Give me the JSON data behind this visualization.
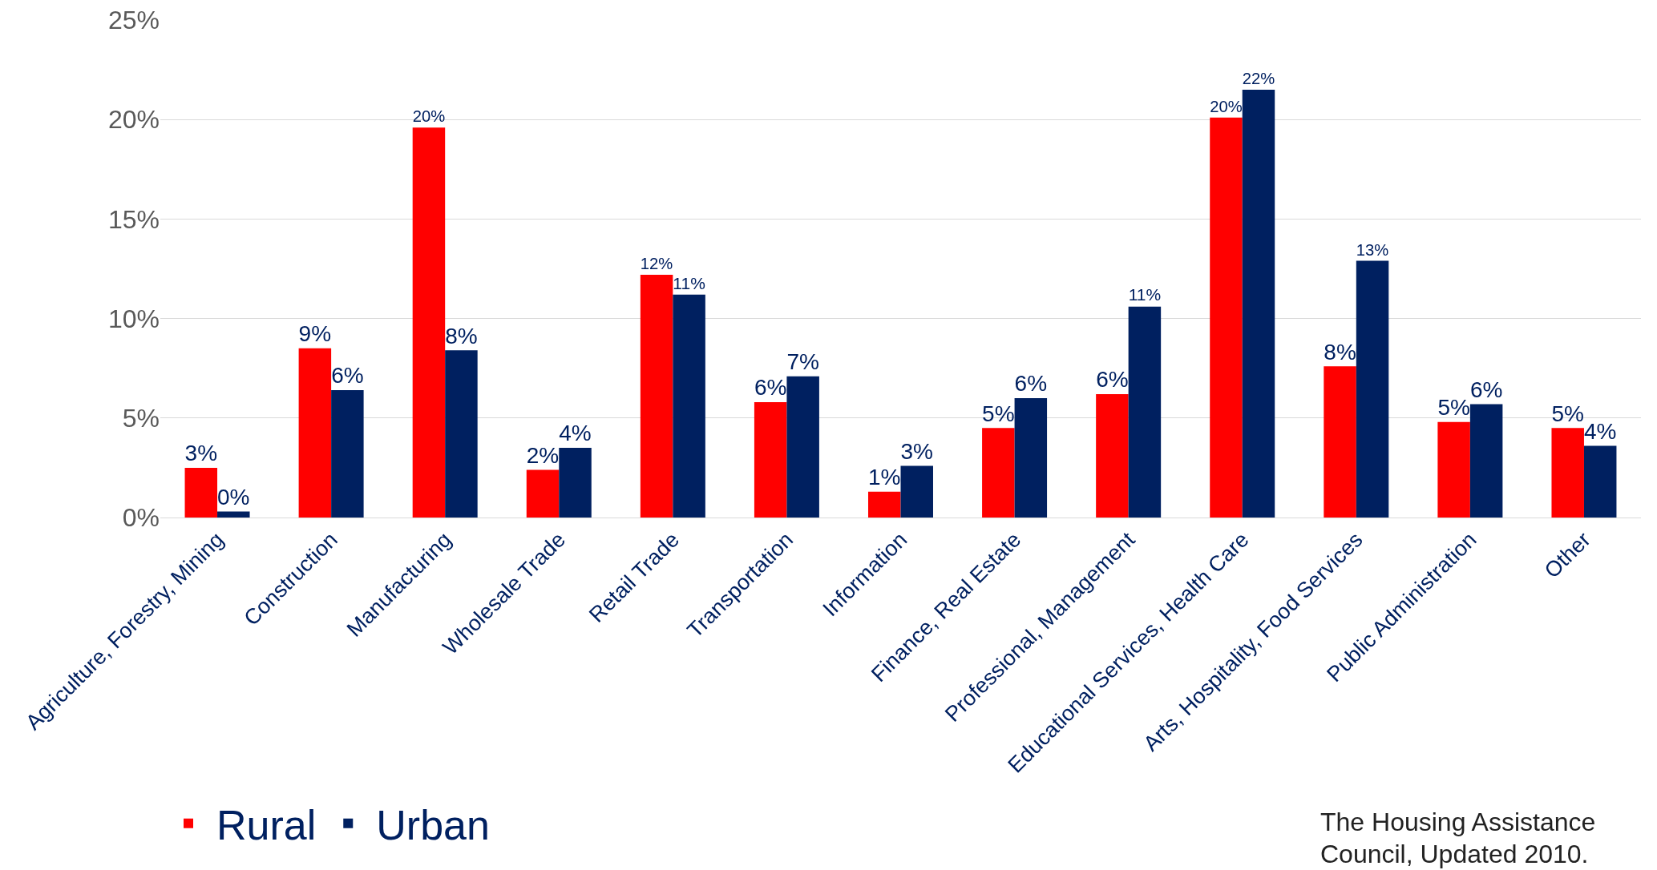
{
  "chart_data": {
    "type": "bar",
    "categories": [
      "Agriculture, Forestry, Mining",
      "Construction",
      "Manufacturing",
      "Wholesale Trade",
      "Retail Trade",
      "Transportation",
      "Information",
      "Finance, Real Estate",
      "Professional, Management",
      "Educational Services, Health Care",
      "Arts, Hospitality, Food Services",
      "Public Administration",
      "Other"
    ],
    "series": [
      {
        "name": "Rural",
        "color": "#ff0000",
        "values": [
          2.5,
          8.5,
          19.6,
          2.4,
          12.2,
          5.8,
          1.3,
          4.5,
          6.2,
          20.1,
          7.6,
          4.8,
          4.5
        ],
        "value_labels": [
          "3%",
          "9%",
          "20%",
          "2%",
          "12%",
          "6%",
          "1%",
          "5%",
          "6%",
          "20%",
          "8%",
          "5%",
          "5%"
        ]
      },
      {
        "name": "Urban",
        "color": "#002060",
        "values": [
          0.3,
          6.4,
          8.4,
          3.5,
          11.2,
          7.1,
          2.6,
          6.0,
          10.6,
          21.5,
          12.9,
          5.7,
          3.6
        ],
        "value_labels": [
          "0%",
          "6%",
          "8%",
          "4%",
          "11%",
          "7%",
          "3%",
          "6%",
          "11%",
          "22%",
          "13%",
          "6%",
          "4%"
        ]
      }
    ],
    "ylim": [
      0,
      25
    ],
    "yticks": [
      {
        "value": 0,
        "label": "0%"
      },
      {
        "value": 5,
        "label": "5%"
      },
      {
        "value": 10,
        "label": "10%"
      },
      {
        "value": 15,
        "label": "15%"
      },
      {
        "value": 20,
        "label": "20%"
      },
      {
        "value": 25,
        "label": "25%"
      }
    ],
    "grid": "y",
    "legend": "bottom left",
    "annotations": [
      "The Housing Assistance Council, Updated 2010."
    ]
  }
}
